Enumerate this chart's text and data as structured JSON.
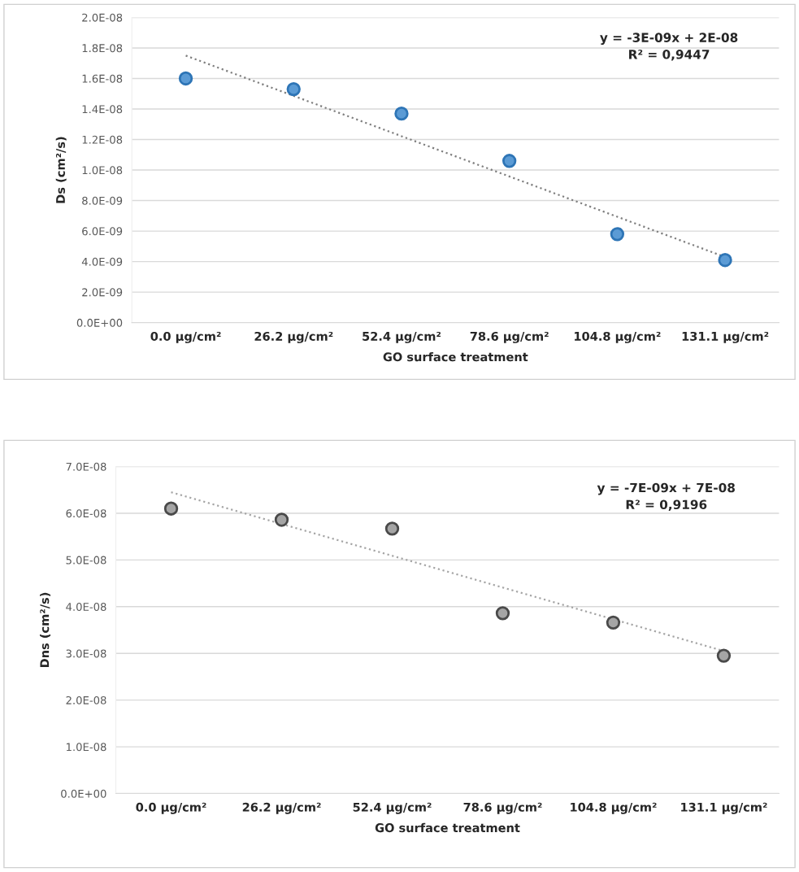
{
  "chart_data": [
    {
      "type": "scatter",
      "xlabel": "GO surface treatment",
      "ylabel": "Ds (cm²/s)",
      "categories": [
        "0.0 µg/cm²",
        "26.2 µg/cm²",
        "52.4 µg/cm²",
        "78.6 µg/cm²",
        "104.8 µg/cm²",
        "131.1 µg/cm²"
      ],
      "series": [
        {
          "color": "#5b9bd5",
          "marker": "circle",
          "values": [
            1.6e-08,
            1.53e-08,
            1.37e-08,
            1.06e-08,
            5.8e-09,
            4.1e-09
          ]
        },
        {
          "type": "line",
          "color": "#7f7f7f",
          "line_style": "dotted",
          "marker": "none",
          "values": [
            1.75e-08,
            null,
            null,
            null,
            null,
            4.3e-09
          ]
        }
      ],
      "ylim": [
        0,
        2e-08
      ],
      "yticks": [
        {
          "value": 0,
          "label": "0.0E+00"
        },
        {
          "value": 2e-09,
          "label": "2.0E-09"
        },
        {
          "value": 4e-09,
          "label": "4.0E-09"
        },
        {
          "value": 6e-09,
          "label": "6.0E-09"
        },
        {
          "value": 8e-09,
          "label": "8.0E-09"
        },
        {
          "value": 1e-08,
          "label": "1.0E-08"
        },
        {
          "value": 1.2e-08,
          "label": "1.2E-08"
        },
        {
          "value": 1.4e-08,
          "label": "1.4E-08"
        },
        {
          "value": 1.6e-08,
          "label": "1.6E-08"
        },
        {
          "value": 1.8e-08,
          "label": "1.8E-08"
        },
        {
          "value": 2e-08,
          "label": "2.0E-08"
        }
      ],
      "grid": "y",
      "legend": false,
      "annotations": [
        "y = -3E-09x + 2E-08\nR² = 0,9447"
      ]
    },
    {
      "type": "scatter",
      "xlabel": "GO surface treatment",
      "ylabel": "Dns (cm²/s)",
      "categories": [
        "0.0 µg/cm²",
        "26.2 µg/cm²",
        "52.4 µg/cm²",
        "78.6 µg/cm²",
        "104.8 µg/cm²",
        "131.1 µg/cm²"
      ],
      "series": [
        {
          "color": "#a5a5a5",
          "marker": "circle",
          "values": [
            6.1e-08,
            5.86e-08,
            5.67e-08,
            3.86e-08,
            3.66e-08,
            2.95e-08
          ]
        },
        {
          "type": "line",
          "color": "#a5a5a5",
          "line_style": "dotted",
          "marker": "none",
          "values": [
            6.45e-08,
            null,
            null,
            null,
            null,
            3.05e-08
          ]
        }
      ],
      "ylim": [
        0,
        7e-08
      ],
      "yticks": [
        {
          "value": 0,
          "label": "0.0E+00"
        },
        {
          "value": 1e-08,
          "label": "1.0E-08"
        },
        {
          "value": 2e-08,
          "label": "2.0E-08"
        },
        {
          "value": 3e-08,
          "label": "3.0E-08"
        },
        {
          "value": 4e-08,
          "label": "4.0E-08"
        },
        {
          "value": 5e-08,
          "label": "5.0E-08"
        },
        {
          "value": 6e-08,
          "label": "6.0E-08"
        },
        {
          "value": 7e-08,
          "label": "7.0E-08"
        }
      ],
      "grid": "y",
      "legend": false,
      "annotations": [
        "y = -7E-09x + 7E-08\nR² = 0,9196"
      ]
    }
  ]
}
